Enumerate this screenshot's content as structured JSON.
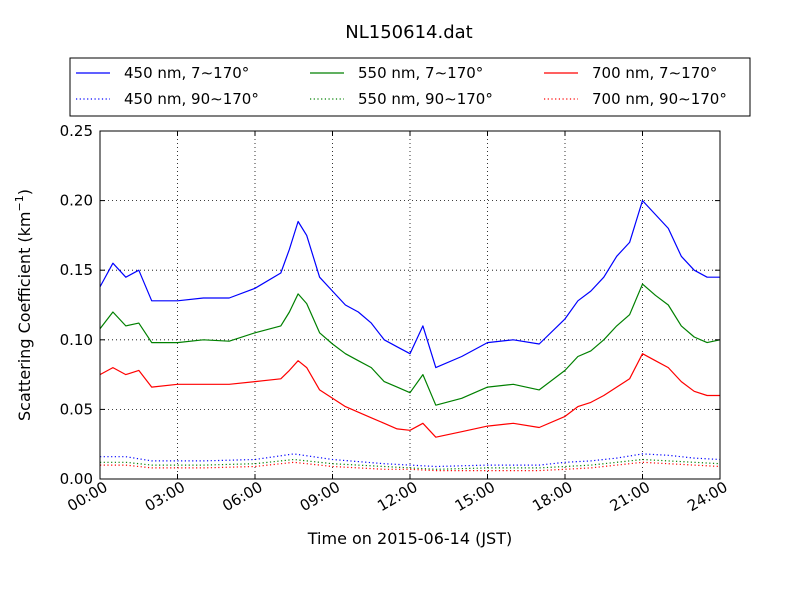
{
  "chart_data": {
    "type": "line",
    "title": "NL150614.dat",
    "xlabel": "Time on 2015-06-14 (JST)",
    "ylabel_main": "Scattering Coefficient (km",
    "ylabel_sup": "−1",
    "ylabel_close": ")",
    "xlim": [
      "00:00",
      "24:00"
    ],
    "ylim": [
      0.0,
      0.25
    ],
    "xticks": [
      "00:00",
      "03:00",
      "06:00",
      "09:00",
      "12:00",
      "15:00",
      "18:00",
      "21:00",
      "24:00"
    ],
    "yticks": [
      "0.00",
      "0.05",
      "0.10",
      "0.15",
      "0.20",
      "0.25"
    ],
    "grid": true,
    "legend_position": "top, above plot",
    "series": [
      {
        "name": "450 nm, 7∼170°",
        "color": "#0000ff",
        "style": "solid",
        "x": [
          "00:00",
          "00:30",
          "01:00",
          "01:30",
          "02:00",
          "03:00",
          "04:00",
          "05:00",
          "06:00",
          "07:00",
          "07:20",
          "07:40",
          "08:00",
          "08:30",
          "09:00",
          "09:30",
          "10:00",
          "10:30",
          "11:00",
          "11:30",
          "12:00",
          "12:30",
          "13:00",
          "14:00",
          "15:00",
          "16:00",
          "17:00",
          "18:00",
          "18:30",
          "19:00",
          "19:30",
          "20:00",
          "20:30",
          "21:00",
          "21:30",
          "22:00",
          "22:30",
          "23:00",
          "23:30",
          "24:00"
        ],
        "y": [
          0.138,
          0.155,
          0.145,
          0.15,
          0.128,
          0.128,
          0.13,
          0.13,
          0.137,
          0.148,
          0.165,
          0.185,
          0.175,
          0.145,
          0.135,
          0.125,
          0.12,
          0.112,
          0.1,
          0.095,
          0.09,
          0.11,
          0.08,
          0.088,
          0.098,
          0.1,
          0.097,
          0.115,
          0.128,
          0.135,
          0.145,
          0.16,
          0.17,
          0.2,
          0.19,
          0.18,
          0.16,
          0.15,
          0.145,
          0.145
        ]
      },
      {
        "name": "450 nm, 90∼170°",
        "color": "#0000ff",
        "style": "dotted",
        "x": [
          "00:00",
          "01:00",
          "02:00",
          "04:00",
          "06:00",
          "07:30",
          "09:00",
          "11:00",
          "12:00",
          "13:00",
          "15:00",
          "17:00",
          "18:00",
          "19:00",
          "20:00",
          "21:00",
          "22:00",
          "23:00",
          "24:00"
        ],
        "y": [
          0.016,
          0.016,
          0.013,
          0.013,
          0.014,
          0.018,
          0.014,
          0.011,
          0.01,
          0.009,
          0.01,
          0.01,
          0.012,
          0.013,
          0.015,
          0.018,
          0.017,
          0.015,
          0.014
        ]
      },
      {
        "name": "550 nm, 7∼170°",
        "color": "#008000",
        "style": "solid",
        "x": [
          "00:00",
          "00:30",
          "01:00",
          "01:30",
          "02:00",
          "03:00",
          "04:00",
          "05:00",
          "06:00",
          "07:00",
          "07:20",
          "07:40",
          "08:00",
          "08:30",
          "09:00",
          "09:30",
          "10:00",
          "10:30",
          "11:00",
          "11:30",
          "12:00",
          "12:30",
          "13:00",
          "14:00",
          "15:00",
          "16:00",
          "17:00",
          "18:00",
          "18:30",
          "19:00",
          "19:30",
          "20:00",
          "20:30",
          "21:00",
          "21:30",
          "22:00",
          "22:30",
          "23:00",
          "23:30",
          "24:00"
        ],
        "y": [
          0.108,
          0.12,
          0.11,
          0.112,
          0.098,
          0.098,
          0.1,
          0.099,
          0.105,
          0.11,
          0.12,
          0.133,
          0.126,
          0.105,
          0.097,
          0.09,
          0.085,
          0.08,
          0.07,
          0.066,
          0.062,
          0.075,
          0.053,
          0.058,
          0.066,
          0.068,
          0.064,
          0.078,
          0.088,
          0.092,
          0.1,
          0.11,
          0.118,
          0.14,
          0.132,
          0.125,
          0.11,
          0.102,
          0.098,
          0.1
        ]
      },
      {
        "name": "550 nm, 90∼170°",
        "color": "#008000",
        "style": "dotted",
        "x": [
          "00:00",
          "01:00",
          "02:00",
          "04:00",
          "06:00",
          "07:30",
          "09:00",
          "11:00",
          "12:00",
          "13:00",
          "15:00",
          "17:00",
          "18:00",
          "19:00",
          "20:00",
          "21:00",
          "22:00",
          "23:00",
          "24:00"
        ],
        "y": [
          0.012,
          0.012,
          0.01,
          0.01,
          0.011,
          0.014,
          0.011,
          0.009,
          0.008,
          0.007,
          0.008,
          0.008,
          0.009,
          0.01,
          0.012,
          0.014,
          0.013,
          0.012,
          0.011
        ]
      },
      {
        "name": "700 nm, 7∼170°",
        "color": "#ff0000",
        "style": "solid",
        "x": [
          "00:00",
          "00:30",
          "01:00",
          "01:30",
          "02:00",
          "03:00",
          "04:00",
          "05:00",
          "06:00",
          "07:00",
          "07:20",
          "07:40",
          "08:00",
          "08:30",
          "09:00",
          "09:30",
          "10:00",
          "10:30",
          "11:00",
          "11:30",
          "12:00",
          "12:30",
          "13:00",
          "14:00",
          "15:00",
          "16:00",
          "17:00",
          "18:00",
          "18:30",
          "19:00",
          "19:30",
          "20:00",
          "20:30",
          "21:00",
          "21:30",
          "22:00",
          "22:30",
          "23:00",
          "23:30",
          "24:00"
        ],
        "y": [
          0.075,
          0.08,
          0.075,
          0.078,
          0.066,
          0.068,
          0.068,
          0.068,
          0.07,
          0.072,
          0.078,
          0.085,
          0.08,
          0.064,
          0.058,
          0.052,
          0.048,
          0.044,
          0.04,
          0.036,
          0.035,
          0.04,
          0.03,
          0.034,
          0.038,
          0.04,
          0.037,
          0.045,
          0.052,
          0.055,
          0.06,
          0.066,
          0.072,
          0.09,
          0.085,
          0.08,
          0.07,
          0.063,
          0.06,
          0.06
        ]
      },
      {
        "name": "700 nm, 90∼170°",
        "color": "#ff0000",
        "style": "dotted",
        "x": [
          "00:00",
          "01:00",
          "02:00",
          "04:00",
          "06:00",
          "07:30",
          "09:00",
          "11:00",
          "12:00",
          "13:00",
          "15:00",
          "17:00",
          "18:00",
          "19:00",
          "20:00",
          "21:00",
          "22:00",
          "23:00",
          "24:00"
        ],
        "y": [
          0.01,
          0.01,
          0.008,
          0.008,
          0.009,
          0.012,
          0.009,
          0.007,
          0.007,
          0.006,
          0.006,
          0.006,
          0.007,
          0.008,
          0.01,
          0.012,
          0.011,
          0.01,
          0.009
        ]
      }
    ]
  }
}
